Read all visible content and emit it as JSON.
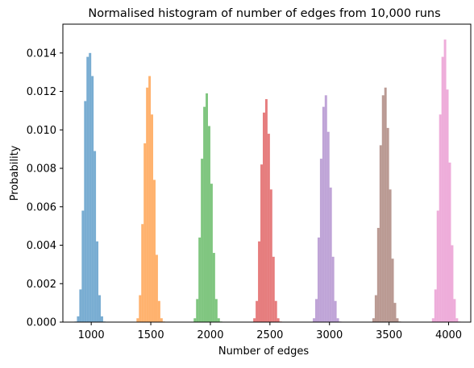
{
  "chart_data": {
    "type": "bar",
    "title": "Normalised histogram of number of edges from 10,000 runs",
    "xlabel": "Number of edges",
    "ylabel": "Probability",
    "xlim": [
      762,
      4186
    ],
    "ylim": [
      0,
      0.0155
    ],
    "x_ticks": [
      1000,
      1500,
      2000,
      2500,
      3000,
      3500,
      4000
    ],
    "x_tick_labels": [
      "1000",
      "1500",
      "2000",
      "2500",
      "3000",
      "3500",
      "4000"
    ],
    "y_ticks": [
      0,
      0.002,
      0.004,
      0.006,
      0.008,
      0.01,
      0.012,
      0.014
    ],
    "y_tick_labels": [
      "0.000",
      "0.002",
      "0.004",
      "0.006",
      "0.008",
      "0.010",
      "0.012",
      "0.014"
    ],
    "grid": false,
    "legend": "none",
    "bar_opacity": 0.6,
    "series": [
      {
        "color": "#1f77b4",
        "bin_edges": [
          860,
          880,
          900,
          920,
          940,
          960,
          980,
          1000,
          1020,
          1040,
          1060,
          1080,
          1100,
          1120
        ],
        "values": [
          3e-05,
          0.0003,
          0.0017,
          0.0058,
          0.0115,
          0.0138,
          0.014,
          0.0128,
          0.0089,
          0.0042,
          0.0014,
          0.0003,
          3e-05
        ]
      },
      {
        "color": "#ff7f0e",
        "bin_edges": [
          1380,
          1400,
          1420,
          1440,
          1460,
          1480,
          1500,
          1520,
          1540,
          1560,
          1580,
          1600,
          1620
        ],
        "values": [
          0.0002,
          0.0014,
          0.0051,
          0.0093,
          0.0122,
          0.0128,
          0.0108,
          0.0074,
          0.0035,
          0.0011,
          0.0002,
          3e-05
        ]
      },
      {
        "color": "#2ca02c",
        "bin_edges": [
          1860,
          1880,
          1900,
          1920,
          1940,
          1960,
          1980,
          2000,
          2020,
          2040,
          2060,
          2080,
          2100
        ],
        "values": [
          0.0002,
          0.0012,
          0.0044,
          0.0085,
          0.0112,
          0.0119,
          0.0102,
          0.0072,
          0.0036,
          0.0012,
          0.0002,
          3e-05
        ]
      },
      {
        "color": "#d62728",
        "bin_edges": [
          2360,
          2380,
          2400,
          2420,
          2440,
          2460,
          2480,
          2500,
          2520,
          2540,
          2560,
          2580,
          2600
        ],
        "values": [
          0.0002,
          0.0011,
          0.0042,
          0.0082,
          0.0109,
          0.0116,
          0.0098,
          0.0069,
          0.0034,
          0.0011,
          0.0002,
          3e-05
        ]
      },
      {
        "color": "#9467bd",
        "bin_edges": [
          2860,
          2880,
          2900,
          2920,
          2940,
          2960,
          2980,
          3000,
          3020,
          3040,
          3060,
          3080,
          3100
        ],
        "values": [
          0.0002,
          0.0012,
          0.0044,
          0.0085,
          0.0112,
          0.0118,
          0.0099,
          0.007,
          0.0034,
          0.0011,
          0.0002,
          3e-05
        ]
      },
      {
        "color": "#8c564b",
        "bin_edges": [
          3360,
          3380,
          3400,
          3420,
          3440,
          3460,
          3480,
          3500,
          3520,
          3540,
          3560,
          3580,
          3600
        ],
        "values": [
          0.0002,
          0.0014,
          0.0049,
          0.0092,
          0.0118,
          0.0122,
          0.0101,
          0.0069,
          0.0033,
          0.001,
          0.0002,
          3e-05
        ]
      },
      {
        "color": "#e377c2",
        "bin_edges": [
          3860,
          3880,
          3900,
          3920,
          3940,
          3960,
          3980,
          4000,
          4020,
          4040,
          4060,
          4080,
          4100
        ],
        "values": [
          0.0002,
          0.0017,
          0.0058,
          0.0108,
          0.0138,
          0.0147,
          0.0121,
          0.0083,
          0.004,
          0.0012,
          0.0002,
          3e-05
        ]
      }
    ]
  }
}
